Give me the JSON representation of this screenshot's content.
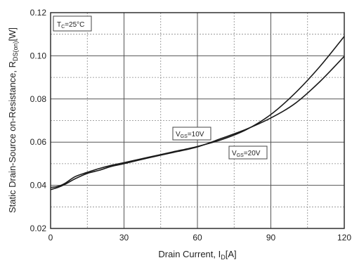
{
  "chart_data": {
    "type": "line",
    "xlabel": "Drain Current, I",
    "xlabel_sub": "D",
    "xlabel_unit": "[A]",
    "ylabel": "Static Drain-Source on-Resistance, R",
    "ylabel_sub": "DS(on)",
    "ylabel_unit": "[W]",
    "xlim": [
      0,
      120
    ],
    "ylim": [
      0.02,
      0.12
    ],
    "x_ticks": [
      0,
      30,
      60,
      90,
      120
    ],
    "y_ticks": [
      0.02,
      0.04,
      0.06,
      0.08,
      0.1,
      0.12
    ],
    "y_tick_labels": [
      "0.02",
      "0.04",
      "0.06",
      "0.08",
      "0.10",
      "0.12"
    ],
    "grid": true,
    "condition": {
      "prefix": "T",
      "sub": "C",
      "suffix": "=25°C"
    },
    "series": [
      {
        "label_prefix": "V",
        "label_sub": "GS",
        "label_suffix": "=10V",
        "x": [
          0,
          3,
          6,
          10,
          15,
          20,
          25,
          30,
          40,
          50,
          60,
          70,
          80,
          90,
          100,
          110,
          120
        ],
        "values": [
          0.039,
          0.0395,
          0.041,
          0.044,
          0.046,
          0.0478,
          0.0493,
          0.0505,
          0.053,
          0.0555,
          0.058,
          0.0612,
          0.0658,
          0.0728,
          0.0828,
          0.095,
          0.109
        ]
      },
      {
        "label_prefix": "V",
        "label_sub": "GS",
        "label_suffix": "=20V",
        "x": [
          0,
          3,
          6,
          10,
          15,
          20,
          25,
          30,
          40,
          50,
          60,
          70,
          80,
          90,
          100,
          110,
          120
        ],
        "values": [
          0.038,
          0.039,
          0.0405,
          0.043,
          0.0455,
          0.047,
          0.0488,
          0.05,
          0.0527,
          0.0552,
          0.0578,
          0.0618,
          0.066,
          0.0712,
          0.078,
          0.088,
          0.0998
        ]
      }
    ]
  }
}
